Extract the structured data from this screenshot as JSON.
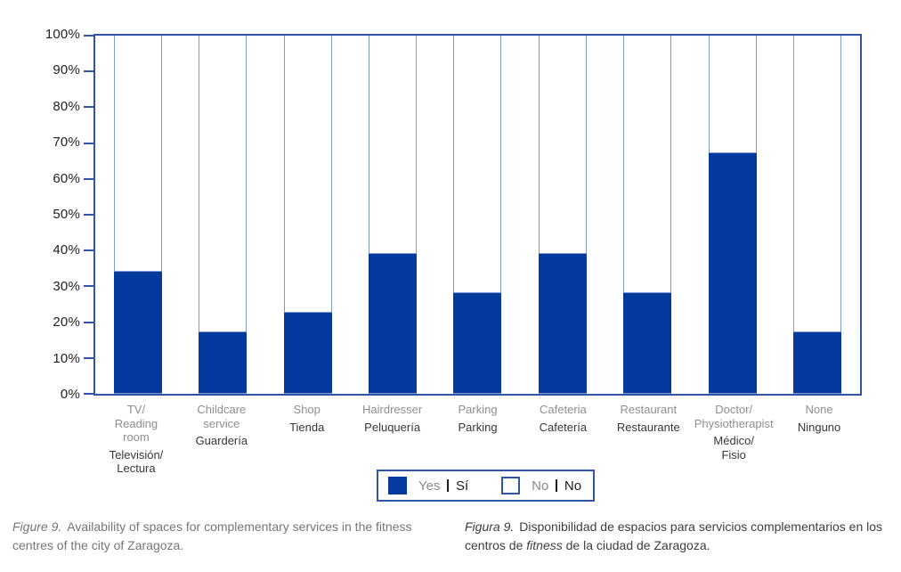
{
  "chart_data": {
    "type": "bar",
    "stacked": true,
    "title": "",
    "xlabel": "",
    "ylabel": "",
    "unit": "%",
    "ylim": [
      0,
      100
    ],
    "grid": false,
    "legend_position": "bottom-center",
    "yticks": [
      "0%",
      "10%",
      "20%",
      "30%",
      "40%",
      "50%",
      "60%",
      "70%",
      "80%",
      "90%",
      "100%"
    ],
    "categories": [
      {
        "en": [
          "TV/",
          "Reading",
          "room"
        ],
        "es": [
          "Televisión/",
          "Lectura"
        ]
      },
      {
        "en": [
          "Childcare",
          "service"
        ],
        "es": [
          "Guardería"
        ]
      },
      {
        "en": [
          "Shop"
        ],
        "es": [
          "Tienda"
        ]
      },
      {
        "en": [
          "Hairdresser"
        ],
        "es": [
          "Peluquería"
        ]
      },
      {
        "en": [
          "Parking"
        ],
        "es": [
          "Parking"
        ]
      },
      {
        "en": [
          "Cafeteria"
        ],
        "es": [
          "Cafetería"
        ]
      },
      {
        "en": [
          "Restaurant"
        ],
        "es": [
          "Restaurante"
        ]
      },
      {
        "en": [
          "Doctor/",
          "Physiotherapist"
        ],
        "es": [
          "Médico/",
          "Fisio"
        ]
      },
      {
        "en": [
          "None"
        ],
        "es": [
          "Ninguno"
        ]
      }
    ],
    "series": [
      {
        "name": "Yes | Sí",
        "values": [
          34,
          17,
          22.5,
          39,
          28,
          39,
          28,
          67,
          17
        ]
      },
      {
        "name": "No | No",
        "values": [
          66,
          83,
          77.5,
          61,
          72,
          61,
          72,
          33,
          83
        ]
      }
    ],
    "colors": {
      "yes_fill": "#0439A0",
      "bar_outline": "#7E99CE",
      "axis": "#2E55A8"
    }
  },
  "legend": {
    "items": [
      {
        "en": "Yes",
        "es": "Sí",
        "swatch": "filled"
      },
      {
        "en": "No",
        "es": "No",
        "swatch": "outline"
      }
    ]
  },
  "captions": {
    "english": {
      "label": "Figure 9.",
      "text": "Availability of spaces for complementary services in the fitness centres of the city of Zaragoza."
    },
    "spanish": {
      "label": "Figura 9.",
      "text_before_italic": "Disponibilidad de espacios para servicios complemen­tarios en los centros de ",
      "italic_word": "fitness",
      "text_after_italic": " de la ciudad de Zaragoza."
    }
  }
}
